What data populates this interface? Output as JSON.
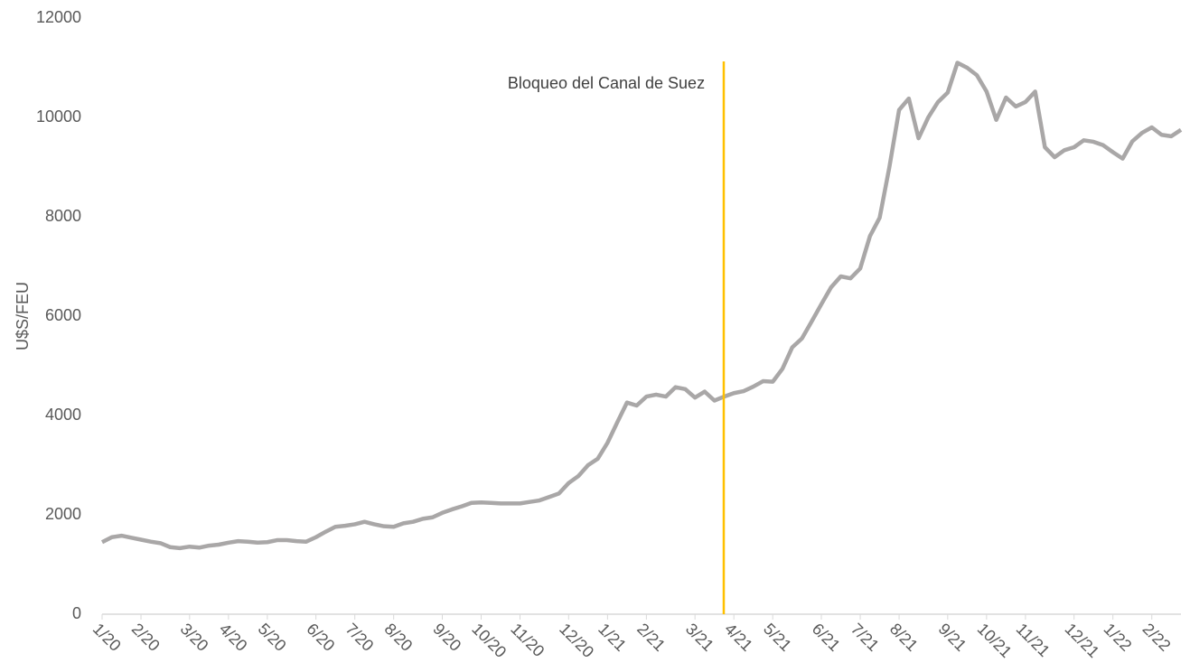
{
  "chart_data": {
    "type": "line",
    "ylabel": "U$S/FEU",
    "annotation": "Bloqueo del Canal de Suez",
    "annotation_color": "#ffc000",
    "ylim": [
      0,
      12000
    ],
    "yticks": [
      0,
      2000,
      4000,
      6000,
      8000,
      10000,
      12000
    ],
    "grid": false,
    "categories": [
      "1/20",
      null,
      null,
      null,
      "2/20",
      null,
      null,
      null,
      null,
      "3/20",
      null,
      null,
      null,
      "4/20",
      null,
      null,
      null,
      "5/20",
      null,
      null,
      null,
      null,
      "6/20",
      null,
      null,
      null,
      "7/20",
      null,
      null,
      null,
      "8/20",
      null,
      null,
      null,
      null,
      "9/20",
      null,
      null,
      null,
      "10/20",
      null,
      null,
      null,
      "11/20",
      null,
      null,
      null,
      null,
      "12/20",
      null,
      null,
      null,
      "1/21",
      null,
      null,
      null,
      "2/21",
      null,
      null,
      null,
      null,
      "3/21",
      null,
      null,
      null,
      "4/21",
      null,
      null,
      null,
      "5/21",
      null,
      null,
      null,
      null,
      "6/21",
      null,
      null,
      null,
      "7/21",
      null,
      null,
      null,
      "8/21",
      null,
      null,
      null,
      null,
      "9/21",
      null,
      null,
      null,
      "10/21",
      null,
      null,
      null,
      "11/21",
      null,
      null,
      null,
      null,
      "12/21",
      null,
      null,
      null,
      "1/22",
      null,
      null,
      null,
      "2/22",
      null,
      null,
      null
    ],
    "series": [
      {
        "name": "U$S/FEU",
        "color": "#a9a7a7",
        "values": [
          1450,
          1550,
          1580,
          1540,
          1500,
          1460,
          1430,
          1350,
          1330,
          1360,
          1340,
          1380,
          1400,
          1440,
          1470,
          1460,
          1440,
          1450,
          1490,
          1490,
          1470,
          1460,
          1550,
          1660,
          1760,
          1780,
          1810,
          1860,
          1810,
          1770,
          1760,
          1830,
          1860,
          1920,
          1950,
          2040,
          2110,
          2170,
          2240,
          2250,
          2240,
          2230,
          2230,
          2230,
          2260,
          2290,
          2360,
          2430,
          2640,
          2780,
          3000,
          3130,
          3450,
          3860,
          4260,
          4200,
          4380,
          4420,
          4380,
          4570,
          4530,
          4360,
          4480,
          4300,
          4380,
          4450,
          4490,
          4580,
          4690,
          4680,
          4940,
          5370,
          5550,
          5890,
          6240,
          6580,
          6800,
          6760,
          6960,
          7610,
          7980,
          9000,
          10150,
          10380,
          9580,
          10000,
          10310,
          10500,
          11100,
          11000,
          10850,
          10520,
          9950,
          10400,
          10220,
          10310,
          10520,
          9400,
          9200,
          9340,
          9400,
          9540,
          9510,
          9440,
          9300,
          9170,
          9520,
          9690,
          9800,
          9650,
          9620,
          9750
        ]
      }
    ]
  }
}
